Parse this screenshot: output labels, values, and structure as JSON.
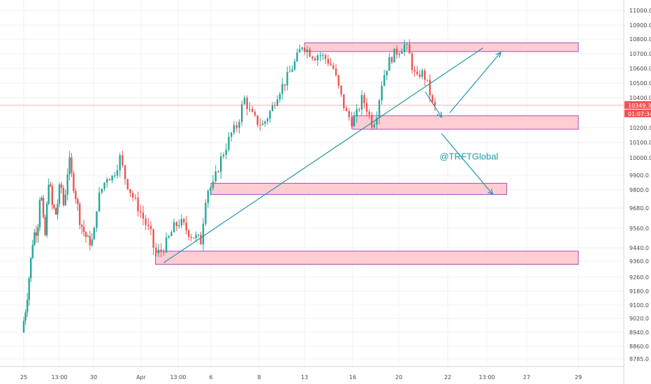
{
  "chart_data": {
    "type": "candlestick",
    "title": "",
    "xlabel": "",
    "ylabel": "",
    "grid": true,
    "ylim": [
      8700,
      11100
    ],
    "y_ticks": [
      11000,
      10900,
      10800,
      10700,
      10600,
      10500,
      10400,
      10200,
      10100,
      10000,
      9900,
      9800,
      9680,
      9560,
      9440,
      9360,
      9260,
      9180,
      9100,
      9020,
      8940,
      8860,
      8785
    ],
    "y_tick_labels": [
      "11000.0",
      "10900.0",
      "10800.0",
      "10700.0",
      "10600.0",
      "10500.0",
      "10400.0",
      "10200.0",
      "10100.0",
      "10000.0",
      "9900.0",
      "9800.0",
      "9680.0",
      "9560.0",
      "9440.0",
      "9360.0",
      "9260.0",
      "9180.0",
      "9100.0",
      "9020.0",
      "8940.0",
      "8860.0",
      "8785.0"
    ],
    "x_ticks": [
      {
        "label": "25",
        "day": 0
      },
      {
        "label": "13:00",
        "day": 2.5
      },
      {
        "label": "30",
        "day": 4.6
      },
      {
        "label": "Apr",
        "day": 6.9
      },
      {
        "label": "13:00",
        "day": 8.7
      },
      {
        "label": "6",
        "day": 10.4
      },
      {
        "label": "8",
        "day": 12.7
      },
      {
        "label": "13",
        "day": 15.0
      },
      {
        "label": "16",
        "day": 17.3
      },
      {
        "label": "20",
        "day": 19.6
      },
      {
        "label": "22",
        "day": 22.0
      },
      {
        "label": "13:00",
        "day": 24.0
      },
      {
        "label": "27",
        "day": 26.0
      },
      {
        "label": "29",
        "day": 28.4
      }
    ],
    "xlim": [
      -1.2,
      29.5
    ],
    "candle_step_days": 0.125,
    "anchors": [
      [
        0,
        8940
      ],
      [
        0.3,
        9100
      ],
      [
        0.5,
        9260
      ],
      [
        0.8,
        9520
      ],
      [
        1.1,
        9560
      ],
      [
        1.3,
        9820
      ],
      [
        1.6,
        9480
      ],
      [
        1.9,
        9900
      ],
      [
        2.1,
        9700
      ],
      [
        2.4,
        9640
      ],
      [
        2.7,
        9860
      ],
      [
        2.9,
        9680
      ],
      [
        3.2,
        10000
      ],
      [
        3.4,
        9880
      ],
      [
        3.7,
        9720
      ],
      [
        3.9,
        9600
      ],
      [
        4.2,
        9520
      ],
      [
        4.4,
        9480
      ],
      [
        4.7,
        9480
      ],
      [
        4.9,
        9720
      ],
      [
        5.1,
        9800
      ],
      [
        5.4,
        9900
      ],
      [
        5.6,
        9880
      ],
      [
        6.0,
        10000
      ],
      [
        6.3,
        9860
      ],
      [
        6.6,
        9760
      ],
      [
        6.9,
        9680
      ],
      [
        7.2,
        9600
      ],
      [
        7.5,
        9520
      ],
      [
        7.7,
        9400
      ],
      [
        8.0,
        9420
      ],
      [
        8.3,
        9480
      ],
      [
        8.6,
        9560
      ],
      [
        8.9,
        9600
      ],
      [
        9.2,
        9560
      ],
      [
        9.5,
        9520
      ],
      [
        9.8,
        9500
      ],
      [
        10.0,
        9480
      ],
      [
        10.3,
        9800
      ],
      [
        10.6,
        9820
      ],
      [
        10.9,
        9960
      ],
      [
        11.2,
        10060
      ],
      [
        11.5,
        10160
      ],
      [
        11.8,
        10220
      ],
      [
        12.1,
        10400
      ],
      [
        12.4,
        10300
      ],
      [
        12.7,
        10240
      ],
      [
        13.0,
        10220
      ],
      [
        13.2,
        10260
      ],
      [
        13.5,
        10340
      ],
      [
        13.8,
        10440
      ],
      [
        14.1,
        10500
      ],
      [
        14.4,
        10580
      ],
      [
        14.7,
        10660
      ],
      [
        15.0,
        10760
      ],
      [
        15.3,
        10720
      ],
      [
        15.6,
        10680
      ],
      [
        15.8,
        10700
      ],
      [
        16.2,
        10660
      ],
      [
        16.5,
        10600
      ],
      [
        16.8,
        10440
      ],
      [
        17.1,
        10300
      ],
      [
        17.4,
        10240
      ],
      [
        17.6,
        10280
      ],
      [
        17.9,
        10400
      ],
      [
        18.1,
        10340
      ],
      [
        18.4,
        10220
      ],
      [
        18.6,
        10280
      ],
      [
        18.9,
        10520
      ],
      [
        19.2,
        10640
      ],
      [
        19.5,
        10700
      ],
      [
        19.7,
        10720
      ],
      [
        20.0,
        10760
      ],
      [
        20.2,
        10720
      ],
      [
        20.4,
        10600
      ],
      [
        20.6,
        10520
      ],
      [
        20.8,
        10580
      ],
      [
        21.0,
        10540
      ],
      [
        21.2,
        10460
      ],
      [
        21.4,
        10340
      ]
    ],
    "current_price_label": "10349.3",
    "countdown_label": "01:07:34",
    "current_price": 10349.3,
    "zones": [
      {
        "x0": 15.0,
        "x1": 28.4,
        "y0": 10715,
        "y1": 10775
      },
      {
        "x0": 17.3,
        "x1": 28.4,
        "y0": 10190,
        "y1": 10280
      },
      {
        "x0": 10.4,
        "x1": 25.0,
        "y0": 9770,
        "y1": 9845
      },
      {
        "x0": 7.6,
        "x1": 28.4,
        "y0": 9340,
        "y1": 9420
      }
    ],
    "trendline": {
      "x0": 8.0,
      "y0": 9350,
      "x1": 23.8,
      "y1": 10740
    },
    "arrows": [
      {
        "x0": 20.9,
        "y0": 10440,
        "x1": 21.7,
        "y1": 10270
      },
      {
        "x0": 22.1,
        "y0": 10300,
        "x1": 24.7,
        "y1": 10710
      },
      {
        "x0": 21.7,
        "y0": 10160,
        "x1": 24.3,
        "y1": 9770
      }
    ],
    "annotations": [
      {
        "text": "@TRFTGlobal",
        "x": 21.6,
        "y": 9990
      }
    ],
    "colors": {
      "up": "#26a69a",
      "down": "#ef5350",
      "zone_fill": "#ffcdd2",
      "zone_stroke": "#9c27b0",
      "line": "#2196a8",
      "price_line": "#ef5350",
      "grid": "#eef0f3"
    }
  }
}
